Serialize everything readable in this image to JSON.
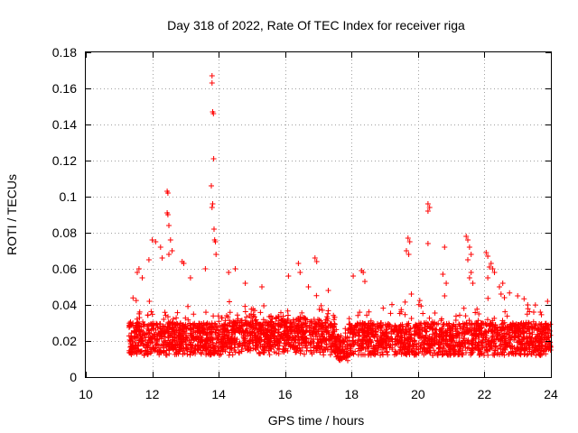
{
  "chart_data": {
    "type": "scatter",
    "title": "Day 318 of 2022, Rate Of TEC Index for receiver riga",
    "xlabel": "GPS time / hours",
    "ylabel": "ROTI / TECUs",
    "xlim": [
      10,
      24
    ],
    "ylim": [
      0,
      0.18
    ],
    "xticks": [
      10,
      12,
      14,
      16,
      18,
      20,
      22,
      24
    ],
    "xtick_labels": [
      "10",
      "12",
      "14",
      "16",
      "18",
      "20",
      "22",
      "24"
    ],
    "yticks": [
      0,
      0.02,
      0.04,
      0.06,
      0.08,
      0.1,
      0.12,
      0.14,
      0.16,
      0.18
    ],
    "ytick_labels": [
      "0",
      "0.02",
      "0.04",
      "0.06",
      "0.08",
      "0.1",
      "0.12",
      "0.14",
      "0.16",
      "0.18"
    ],
    "grid": true,
    "marker": "+",
    "color": "#ff0000",
    "data_range_x": [
      11.3,
      24.0
    ],
    "outliers": [
      {
        "x": 11.6,
        "y": 0.06
      },
      {
        "x": 11.55,
        "y": 0.058
      },
      {
        "x": 11.7,
        "y": 0.055
      },
      {
        "x": 11.9,
        "y": 0.065
      },
      {
        "x": 12.0,
        "y": 0.076
      },
      {
        "x": 12.1,
        "y": 0.075
      },
      {
        "x": 12.25,
        "y": 0.072
      },
      {
        "x": 12.3,
        "y": 0.066
      },
      {
        "x": 12.45,
        "y": 0.103
      },
      {
        "x": 12.47,
        "y": 0.102
      },
      {
        "x": 12.45,
        "y": 0.091
      },
      {
        "x": 12.47,
        "y": 0.09
      },
      {
        "x": 12.5,
        "y": 0.084
      },
      {
        "x": 12.55,
        "y": 0.076
      },
      {
        "x": 12.6,
        "y": 0.07
      },
      {
        "x": 12.5,
        "y": 0.068
      },
      {
        "x": 12.9,
        "y": 0.064
      },
      {
        "x": 12.95,
        "y": 0.063
      },
      {
        "x": 13.15,
        "y": 0.055
      },
      {
        "x": 13.6,
        "y": 0.06
      },
      {
        "x": 13.8,
        "y": 0.167
      },
      {
        "x": 13.8,
        "y": 0.163
      },
      {
        "x": 13.82,
        "y": 0.147
      },
      {
        "x": 13.84,
        "y": 0.146
      },
      {
        "x": 13.85,
        "y": 0.121
      },
      {
        "x": 13.78,
        "y": 0.106
      },
      {
        "x": 13.82,
        "y": 0.096
      },
      {
        "x": 13.8,
        "y": 0.094
      },
      {
        "x": 13.86,
        "y": 0.082
      },
      {
        "x": 13.88,
        "y": 0.076
      },
      {
        "x": 13.9,
        "y": 0.075
      },
      {
        "x": 13.92,
        "y": 0.068
      },
      {
        "x": 14.5,
        "y": 0.06
      },
      {
        "x": 14.3,
        "y": 0.058
      },
      {
        "x": 14.8,
        "y": 0.052
      },
      {
        "x": 15.3,
        "y": 0.05
      },
      {
        "x": 16.1,
        "y": 0.056
      },
      {
        "x": 16.4,
        "y": 0.063
      },
      {
        "x": 16.45,
        "y": 0.058
      },
      {
        "x": 16.9,
        "y": 0.066
      },
      {
        "x": 16.95,
        "y": 0.064
      },
      {
        "x": 16.7,
        "y": 0.05
      },
      {
        "x": 17.3,
        "y": 0.048
      },
      {
        "x": 18.3,
        "y": 0.059
      },
      {
        "x": 18.35,
        "y": 0.058
      },
      {
        "x": 18.05,
        "y": 0.056
      },
      {
        "x": 18.4,
        "y": 0.053
      },
      {
        "x": 19.7,
        "y": 0.077
      },
      {
        "x": 19.75,
        "y": 0.075
      },
      {
        "x": 19.65,
        "y": 0.07
      },
      {
        "x": 19.72,
        "y": 0.068
      },
      {
        "x": 19.8,
        "y": 0.046
      },
      {
        "x": 20.3,
        "y": 0.096
      },
      {
        "x": 20.35,
        "y": 0.094
      },
      {
        "x": 20.3,
        "y": 0.092
      },
      {
        "x": 20.3,
        "y": 0.074
      },
      {
        "x": 20.8,
        "y": 0.072
      },
      {
        "x": 20.75,
        "y": 0.057
      },
      {
        "x": 20.85,
        "y": 0.052
      },
      {
        "x": 20.8,
        "y": 0.045
      },
      {
        "x": 21.45,
        "y": 0.078
      },
      {
        "x": 21.5,
        "y": 0.076
      },
      {
        "x": 21.55,
        "y": 0.072
      },
      {
        "x": 21.6,
        "y": 0.068
      },
      {
        "x": 21.5,
        "y": 0.065
      },
      {
        "x": 21.6,
        "y": 0.058
      },
      {
        "x": 21.55,
        "y": 0.055
      },
      {
        "x": 21.65,
        "y": 0.052
      },
      {
        "x": 22.05,
        "y": 0.069
      },
      {
        "x": 22.1,
        "y": 0.067
      },
      {
        "x": 22.2,
        "y": 0.063
      },
      {
        "x": 22.15,
        "y": 0.061
      },
      {
        "x": 22.25,
        "y": 0.06
      },
      {
        "x": 22.3,
        "y": 0.058
      },
      {
        "x": 22.1,
        "y": 0.055
      },
      {
        "x": 22.45,
        "y": 0.05
      },
      {
        "x": 22.5,
        "y": 0.046
      },
      {
        "x": 22.6,
        "y": 0.044
      },
      {
        "x": 22.55,
        "y": 0.052
      },
      {
        "x": 23.0,
        "y": 0.045
      },
      {
        "x": 23.3,
        "y": 0.04
      },
      {
        "x": 23.9,
        "y": 0.042
      }
    ]
  }
}
